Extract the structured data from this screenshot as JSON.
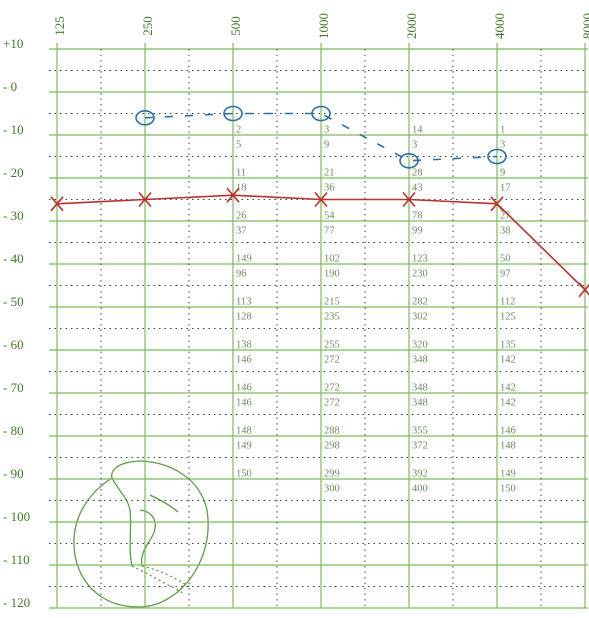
{
  "chart_data": {
    "type": "line",
    "categories": [
      "125",
      "250",
      "500",
      "1000",
      "2000",
      "4000",
      "8000"
    ],
    "ylim": [
      10,
      -120
    ],
    "yticks": [
      {
        "value": 10,
        "label": "+10"
      },
      {
        "value": 0,
        "label": "- 0"
      },
      {
        "value": -10,
        "label": "- 10"
      },
      {
        "value": -20,
        "label": "- 20"
      },
      {
        "value": -30,
        "label": "- 30"
      },
      {
        "value": -40,
        "label": "- 40"
      },
      {
        "value": -50,
        "label": "- 50"
      },
      {
        "value": -60,
        "label": "- 60"
      },
      {
        "value": -70,
        "label": "- 70"
      },
      {
        "value": -80,
        "label": "- 80"
      },
      {
        "value": -90,
        "label": "- 90"
      },
      {
        "value": -100,
        "label": "- 100"
      },
      {
        "value": -110,
        "label": "- 110"
      },
      {
        "value": -120,
        "label": "- 120"
      }
    ],
    "grid": true,
    "grid_color": "#7dbb5e",
    "series": [
      {
        "color": "#2f6f9f",
        "marker": "circle",
        "values": [
          null,
          -6,
          -5,
          -5,
          -16,
          -15,
          null
        ]
      },
      {
        "color": "#b8322e",
        "marker": "x",
        "values": [
          -26,
          -25,
          -24,
          -25,
          -25,
          -26,
          -46
        ]
      }
    ],
    "notes": [
      null,
      null,
      [
        "2",
        "5",
        "11",
        "18",
        "26",
        "37",
        "149",
        "96",
        "113",
        "128",
        "138",
        "146",
        "146",
        "146",
        "148",
        "149",
        "150"
      ],
      [
        "3",
        "9",
        "21",
        "36",
        "54",
        "77",
        "102",
        "190",
        "215",
        "235",
        "255",
        "272",
        "272",
        "272",
        "288",
        "298",
        "299",
        "300"
      ],
      [
        "14",
        "3",
        "28",
        "43",
        "78",
        "99",
        "123",
        "230",
        "282",
        "302",
        "320",
        "348",
        "348",
        "348",
        "355",
        "372",
        "392",
        "400"
      ],
      [
        "1",
        "3",
        "9",
        "17",
        "27",
        "38",
        "50",
        "97",
        "112",
        "125",
        "135",
        "142",
        "142",
        "142",
        "146",
        "148",
        "149",
        "150"
      ],
      null
    ]
  }
}
